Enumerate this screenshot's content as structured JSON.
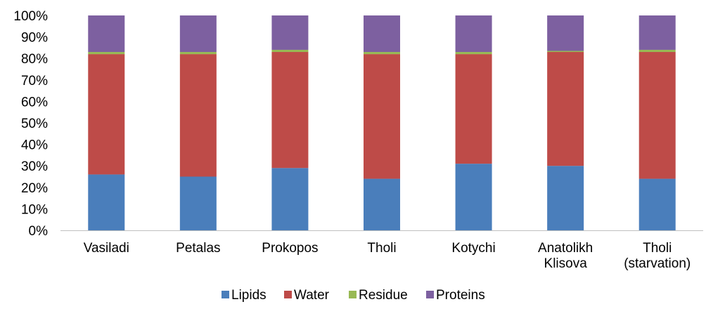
{
  "chart_data": {
    "type": "bar",
    "stacked": true,
    "percent": true,
    "categories": [
      [
        "Vasiladi"
      ],
      [
        "Petalas"
      ],
      [
        "Prokopos"
      ],
      [
        "Tholi"
      ],
      [
        "Kotychi"
      ],
      [
        "Anatolikh",
        "Klisova"
      ],
      [
        "Tholi",
        "(starvation)"
      ]
    ],
    "series": [
      {
        "name": "Lipids",
        "color": "#4a7ebb",
        "values": [
          26,
          25,
          29,
          24,
          31,
          30,
          24
        ]
      },
      {
        "name": "Water",
        "color": "#be4b48",
        "values": [
          56,
          57,
          54,
          58,
          51,
          53,
          59
        ]
      },
      {
        "name": "Residue",
        "color": "#98b954",
        "values": [
          1,
          1,
          1,
          1,
          1,
          0.5,
          1
        ]
      },
      {
        "name": "Proteins",
        "color": "#7d60a0",
        "values": [
          17,
          17,
          16,
          17,
          17,
          16.5,
          16
        ]
      }
    ],
    "y_ticks": [
      "0%",
      "10%",
      "20%",
      "30%",
      "40%",
      "50%",
      "60%",
      "70%",
      "80%",
      "90%",
      "100%"
    ],
    "ylim": [
      0,
      100
    ],
    "grid": false,
    "legend_position": "bottom"
  }
}
